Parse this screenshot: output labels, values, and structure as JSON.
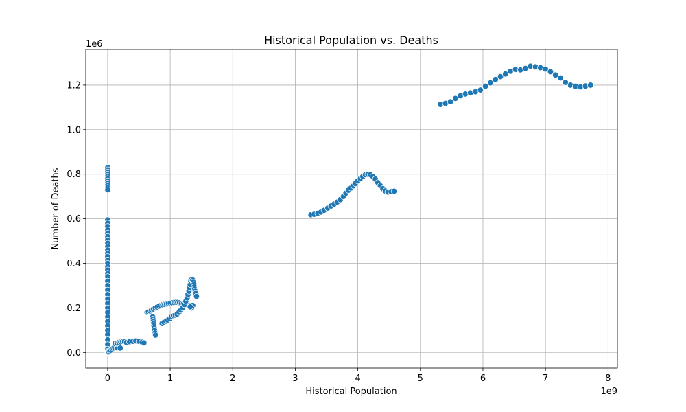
{
  "chart_data": {
    "type": "scatter",
    "title": "Historical Population vs. Deaths",
    "xlabel": "Historical Population",
    "ylabel": "Number of Deaths",
    "x_scale_label": "1e9",
    "y_scale_label": "1e6",
    "x_unit": 1000000000,
    "y_unit": 1000000,
    "xlim": [
      -350000000,
      8150000000
    ],
    "ylim": [
      -70000,
      1360000
    ],
    "xticks": [
      0,
      1000000000,
      2000000000,
      3000000000,
      4000000000,
      5000000000,
      6000000000,
      7000000000,
      8000000000
    ],
    "xtick_labels": [
      "0",
      "1",
      "2",
      "3",
      "4",
      "5",
      "6",
      "7",
      "8"
    ],
    "yticks": [
      0,
      200000,
      400000,
      600000,
      800000,
      1000000,
      1200000
    ],
    "ytick_labels": [
      "0.0",
      "0.2",
      "0.4",
      "0.6",
      "0.8",
      "1.0",
      "1.2"
    ],
    "grid": true,
    "color": "#1f77b4",
    "points": [
      [
        1000000,
        830000
      ],
      [
        1000000,
        820000
      ],
      [
        1000000,
        810000
      ],
      [
        1000000,
        800000
      ],
      [
        1000000,
        790000
      ],
      [
        1000000,
        780000
      ],
      [
        1000000,
        770000
      ],
      [
        1000000,
        760000
      ],
      [
        1000000,
        750000
      ],
      [
        1000000,
        740000
      ],
      [
        1000000,
        730000
      ],
      [
        1000000,
        595000
      ],
      [
        1000000,
        580000
      ],
      [
        1000000,
        565000
      ],
      [
        1000000,
        550000
      ],
      [
        1000000,
        535000
      ],
      [
        1000000,
        520000
      ],
      [
        1000000,
        505000
      ],
      [
        1000000,
        490000
      ],
      [
        1000000,
        475000
      ],
      [
        1000000,
        460000
      ],
      [
        1000000,
        445000
      ],
      [
        1000000,
        430000
      ],
      [
        1000000,
        415000
      ],
      [
        1000000,
        400000
      ],
      [
        1000000,
        385000
      ],
      [
        1000000,
        370000
      ],
      [
        1000000,
        355000
      ],
      [
        1000000,
        340000
      ],
      [
        1000000,
        320000
      ],
      [
        1000000,
        300000
      ],
      [
        1000000,
        280000
      ],
      [
        1000000,
        260000
      ],
      [
        1000000,
        240000
      ],
      [
        1000000,
        220000
      ],
      [
        1000000,
        200000
      ],
      [
        1000000,
        180000
      ],
      [
        1000000,
        160000
      ],
      [
        1000000,
        140000
      ],
      [
        1000000,
        120000
      ],
      [
        1000000,
        100000
      ],
      [
        1000000,
        80000
      ],
      [
        1000000,
        57000
      ],
      [
        1000000,
        35000
      ],
      [
        1000000,
        15000
      ],
      [
        1000000,
        5000
      ],
      [
        5000000,
        2000
      ],
      [
        10000000,
        1000
      ],
      [
        20000000,
        3000
      ],
      [
        35000000,
        6000
      ],
      [
        50000000,
        10000
      ],
      [
        70000000,
        15000
      ],
      [
        90000000,
        20000
      ],
      [
        110000000,
        24000
      ],
      [
        150000000,
        21000
      ],
      [
        200000000,
        20000
      ],
      [
        120000000,
        40000
      ],
      [
        150000000,
        42000
      ],
      [
        180000000,
        45000
      ],
      [
        210000000,
        47000
      ],
      [
        240000000,
        50000
      ],
      [
        270000000,
        50000
      ],
      [
        300000000,
        45000
      ],
      [
        350000000,
        48000
      ],
      [
        400000000,
        50000
      ],
      [
        450000000,
        52000
      ],
      [
        500000000,
        50000
      ],
      [
        550000000,
        46000
      ],
      [
        580000000,
        43000
      ],
      [
        630000000,
        180000
      ],
      [
        650000000,
        183000
      ],
      [
        680000000,
        186000
      ],
      [
        700000000,
        190000
      ],
      [
        730000000,
        195000
      ],
      [
        760000000,
        200000
      ],
      [
        790000000,
        204000
      ],
      [
        820000000,
        208000
      ],
      [
        850000000,
        211000
      ],
      [
        880000000,
        214000
      ],
      [
        910000000,
        216000
      ],
      [
        940000000,
        218000
      ],
      [
        970000000,
        220000
      ],
      [
        1000000000,
        222000
      ],
      [
        1030000000,
        223000
      ],
      [
        1060000000,
        224000
      ],
      [
        1090000000,
        225000
      ],
      [
        1120000000,
        225000
      ],
      [
        1150000000,
        223000
      ],
      [
        1180000000,
        220000
      ],
      [
        1210000000,
        218000
      ],
      [
        1240000000,
        216000
      ],
      [
        1270000000,
        214000
      ],
      [
        1300000000,
        212000
      ],
      [
        1330000000,
        210000
      ],
      [
        1360000000,
        211000
      ],
      [
        720000000,
        160000
      ],
      [
        725000000,
        150000
      ],
      [
        730000000,
        140000
      ],
      [
        735000000,
        130000
      ],
      [
        740000000,
        120000
      ],
      [
        745000000,
        110000
      ],
      [
        750000000,
        100000
      ],
      [
        760000000,
        88000
      ],
      [
        765000000,
        78000
      ],
      [
        870000000,
        130000
      ],
      [
        900000000,
        135000
      ],
      [
        930000000,
        140000
      ],
      [
        960000000,
        145000
      ],
      [
        990000000,
        152000
      ],
      [
        1020000000,
        160000
      ],
      [
        1050000000,
        165000
      ],
      [
        1080000000,
        168000
      ],
      [
        1110000000,
        172000
      ],
      [
        1140000000,
        180000
      ],
      [
        1170000000,
        190000
      ],
      [
        1200000000,
        200000
      ],
      [
        1230000000,
        215000
      ],
      [
        1250000000,
        230000
      ],
      [
        1270000000,
        245000
      ],
      [
        1285000000,
        260000
      ],
      [
        1300000000,
        275000
      ],
      [
        1310000000,
        290000
      ],
      [
        1320000000,
        305000
      ],
      [
        1330000000,
        320000
      ],
      [
        1345000000,
        328000
      ],
      [
        1360000000,
        325000
      ],
      [
        1370000000,
        315000
      ],
      [
        1380000000,
        305000
      ],
      [
        1385000000,
        295000
      ],
      [
        1390000000,
        285000
      ],
      [
        1400000000,
        275000
      ],
      [
        1410000000,
        265000
      ],
      [
        1420000000,
        252000
      ],
      [
        1340000000,
        200000
      ],
      [
        1320000000,
        205000
      ],
      [
        3250000000,
        618000
      ],
      [
        3300000000,
        620000
      ],
      [
        3360000000,
        625000
      ],
      [
        3410000000,
        630000
      ],
      [
        3460000000,
        638000
      ],
      [
        3520000000,
        648000
      ],
      [
        3570000000,
        657000
      ],
      [
        3620000000,
        666000
      ],
      [
        3670000000,
        675000
      ],
      [
        3720000000,
        686000
      ],
      [
        3770000000,
        700000
      ],
      [
        3810000000,
        715000
      ],
      [
        3850000000,
        728000
      ],
      [
        3890000000,
        738000
      ],
      [
        3930000000,
        748000
      ],
      [
        3960000000,
        758000
      ],
      [
        4000000000,
        770000
      ],
      [
        4040000000,
        780000
      ],
      [
        4080000000,
        790000
      ],
      [
        4120000000,
        798000
      ],
      [
        4160000000,
        800000
      ],
      [
        4200000000,
        798000
      ],
      [
        4240000000,
        790000
      ],
      [
        4280000000,
        778000
      ],
      [
        4320000000,
        762000
      ],
      [
        4360000000,
        748000
      ],
      [
        4400000000,
        735000
      ],
      [
        4440000000,
        725000
      ],
      [
        4480000000,
        720000
      ],
      [
        4530000000,
        722000
      ],
      [
        4580000000,
        724000
      ],
      [
        5320000000,
        1113000
      ],
      [
        5400000000,
        1118000
      ],
      [
        5480000000,
        1125000
      ],
      [
        5560000000,
        1140000
      ],
      [
        5640000000,
        1152000
      ],
      [
        5720000000,
        1160000
      ],
      [
        5800000000,
        1165000
      ],
      [
        5880000000,
        1170000
      ],
      [
        5960000000,
        1178000
      ],
      [
        6040000000,
        1195000
      ],
      [
        6120000000,
        1210000
      ],
      [
        6200000000,
        1225000
      ],
      [
        6280000000,
        1238000
      ],
      [
        6360000000,
        1250000
      ],
      [
        6440000000,
        1262000
      ],
      [
        6520000000,
        1270000
      ],
      [
        6600000000,
        1268000
      ],
      [
        6680000000,
        1275000
      ],
      [
        6760000000,
        1285000
      ],
      [
        6840000000,
        1282000
      ],
      [
        6920000000,
        1278000
      ],
      [
        7000000000,
        1272000
      ],
      [
        7080000000,
        1260000
      ],
      [
        7160000000,
        1245000
      ],
      [
        7240000000,
        1232000
      ],
      [
        7320000000,
        1212000
      ],
      [
        7400000000,
        1200000
      ],
      [
        7480000000,
        1195000
      ],
      [
        7560000000,
        1192000
      ],
      [
        7640000000,
        1196000
      ],
      [
        7720000000,
        1200000
      ]
    ]
  }
}
